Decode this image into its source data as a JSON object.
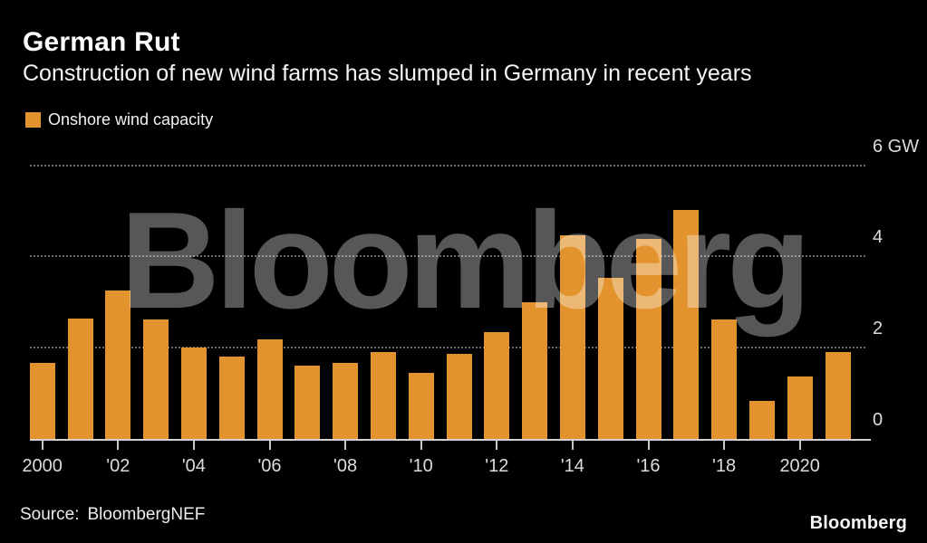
{
  "header": {
    "title": "German Rut",
    "subtitle": "Construction of new wind farms has slumped in Germany in recent years"
  },
  "legend": {
    "label": "Onshore wind capacity"
  },
  "watermark": {
    "text": "Bloomberg"
  },
  "footer": {
    "source_label": "Source:",
    "source_value": "BloombergNEF",
    "logo_text": "Bloomberg"
  },
  "colors": {
    "background": "#000000",
    "bar": "#E2932E",
    "gridline": "rgba(255,255,255,0.42)",
    "axis_line": "#d2d2d2",
    "tick_label": "#dcdcdc",
    "title_text": "#ffffff",
    "watermark": "rgba(255,255,255,0.34)"
  },
  "chart_data": {
    "type": "bar",
    "title": "German Rut",
    "subtitle": "Construction of new wind farms has slumped in Germany in recent years",
    "series_name": "Onshore wind capacity",
    "unit": "GW",
    "x": [
      2000,
      2001,
      2002,
      2003,
      2004,
      2005,
      2006,
      2007,
      2008,
      2009,
      2010,
      2011,
      2012,
      2013,
      2014,
      2015,
      2016,
      2017,
      2018,
      2019,
      2020,
      2021
    ],
    "values": [
      1.66,
      2.64,
      3.25,
      2.62,
      2.0,
      1.81,
      2.18,
      1.6,
      1.67,
      1.9,
      1.44,
      1.87,
      2.35,
      2.99,
      4.47,
      3.53,
      4.39,
      5.02,
      2.61,
      0.84,
      1.36,
      1.91
    ],
    "ylim": [
      0,
      6
    ],
    "yticks": [
      {
        "value": 0,
        "label": "0"
      },
      {
        "value": 2,
        "label": "2"
      },
      {
        "value": 4,
        "label": "4"
      },
      {
        "value": 6,
        "label": "6 GW"
      }
    ],
    "xticks": [
      {
        "year": 2000,
        "label": "2000"
      },
      {
        "year": 2002,
        "label": "'02"
      },
      {
        "year": 2004,
        "label": "'04"
      },
      {
        "year": 2006,
        "label": "'06"
      },
      {
        "year": 2008,
        "label": "'08"
      },
      {
        "year": 2010,
        "label": "'10"
      },
      {
        "year": 2012,
        "label": "'12"
      },
      {
        "year": 2014,
        "label": "'14"
      },
      {
        "year": 2016,
        "label": "'16"
      },
      {
        "year": 2018,
        "label": "'18"
      },
      {
        "year": 2020,
        "label": "2020"
      }
    ],
    "grid": "dotted horizontal at 2, 4, 6",
    "legend_position": "top-left",
    "y_axis_side": "right"
  }
}
